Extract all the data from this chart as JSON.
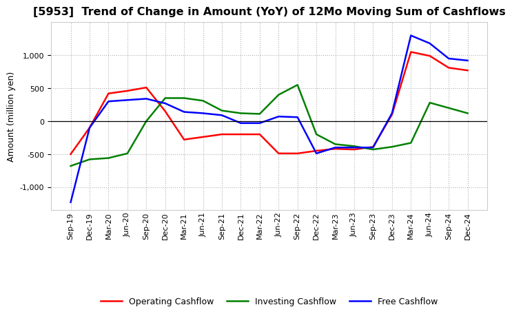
{
  "title": "[5953]  Trend of Change in Amount (YoY) of 12Mo Moving Sum of Cashflows",
  "ylabel": "Amount (million yen)",
  "categories": [
    "Sep-19",
    "Dec-19",
    "Mar-20",
    "Jun-20",
    "Sep-20",
    "Dec-20",
    "Mar-21",
    "Jun-21",
    "Sep-21",
    "Dec-21",
    "Mar-22",
    "Jun-22",
    "Sep-22",
    "Dec-22",
    "Mar-23",
    "Jun-23",
    "Sep-23",
    "Dec-23",
    "Mar-24",
    "Jun-24",
    "Sep-24",
    "Dec-24"
  ],
  "operating": [
    -500,
    -100,
    420,
    460,
    510,
    150,
    -280,
    -240,
    -200,
    -200,
    -200,
    -490,
    -490,
    -450,
    -420,
    -430,
    -390,
    100,
    1050,
    990,
    810,
    770
  ],
  "investing": [
    -680,
    -580,
    -560,
    -490,
    0,
    350,
    350,
    310,
    160,
    120,
    110,
    400,
    550,
    -200,
    -350,
    -380,
    -430,
    -390,
    -330,
    280,
    200,
    120
  ],
  "free": [
    -1230,
    -100,
    300,
    320,
    340,
    270,
    140,
    120,
    90,
    -30,
    -30,
    70,
    60,
    -490,
    -400,
    -400,
    -400,
    120,
    1300,
    1180,
    950,
    920
  ],
  "operating_color": "#ff0000",
  "investing_color": "#008000",
  "free_color": "#0000ff",
  "ylim": [
    -1350,
    1500
  ],
  "yticks": [
    -1000,
    -500,
    0,
    500,
    1000
  ],
  "bg_color": "#ffffff",
  "grid_color": "#b0b0b0",
  "title_fontsize": 11.5,
  "label_fontsize": 9,
  "tick_fontsize": 8
}
